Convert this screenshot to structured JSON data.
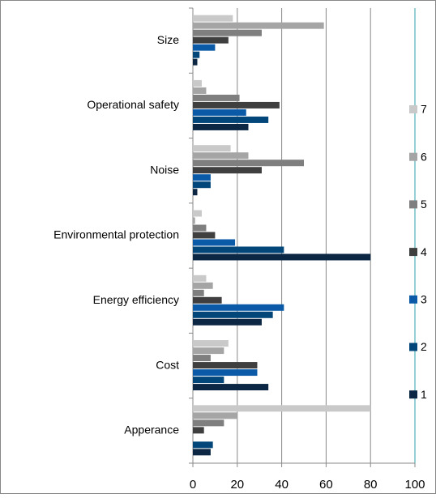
{
  "chart_data": {
    "type": "bar",
    "orientation": "horizontal",
    "categories": [
      "Size",
      "Operational safety",
      "Noise",
      "Environmental protection",
      "Energy efficiency",
      "Cost",
      "Apperance"
    ],
    "series": [
      {
        "name": "1",
        "color": "#0b2744",
        "values": [
          2,
          25,
          2,
          80,
          31,
          34,
          8
        ]
      },
      {
        "name": "2",
        "color": "#03477a",
        "values": [
          3,
          34,
          8,
          41,
          36,
          14,
          9
        ]
      },
      {
        "name": "3",
        "color": "#0a5aa8",
        "values": [
          10,
          24,
          8,
          19,
          41,
          29,
          0
        ]
      },
      {
        "name": "4",
        "color": "#3f3f3f",
        "values": [
          16,
          39,
          31,
          10,
          13,
          29,
          5
        ]
      },
      {
        "name": "5",
        "color": "#7f7f7f",
        "values": [
          31,
          21,
          50,
          6,
          5,
          8,
          14
        ]
      },
      {
        "name": "6",
        "color": "#a5a5a5",
        "values": [
          59,
          6,
          25,
          1,
          9,
          14,
          20
        ]
      },
      {
        "name": "7",
        "color": "#c9c9c9",
        "values": [
          18,
          4,
          17,
          4,
          6,
          16,
          80
        ]
      }
    ],
    "xlim": [
      0,
      100
    ],
    "xticks": [
      0,
      20,
      40,
      60,
      80,
      100
    ],
    "grid": true,
    "legend": "right"
  }
}
